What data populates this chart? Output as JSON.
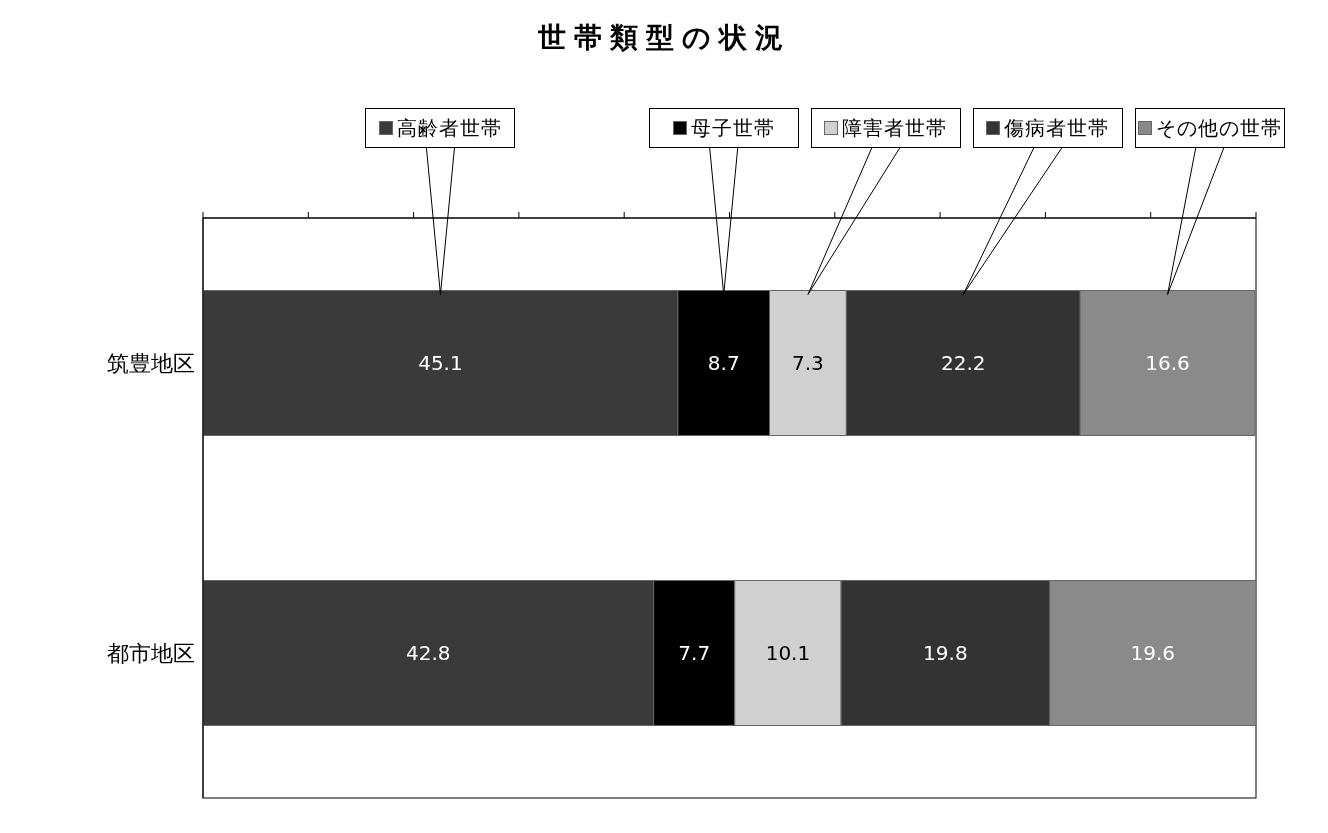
{
  "chart_data": {
    "type": "bar",
    "title": "世帯類型の状況",
    "orientation": "horizontal",
    "stacked": true,
    "categories": [
      "筑豊地区",
      "都市地区"
    ],
    "series": [
      {
        "name": "高齢者世帯",
        "color": "#3a3a3a",
        "values": [
          45.1,
          42.8
        ]
      },
      {
        "name": "母子世帯",
        "color": "#000000",
        "values": [
          8.7,
          7.7
        ]
      },
      {
        "name": "障害者世帯",
        "color": "#d0d0d0",
        "values": [
          7.3,
          10.1
        ]
      },
      {
        "name": "傷病者世帯",
        "color": "#333333",
        "values": [
          22.2,
          19.8
        ]
      },
      {
        "name": "その他の世帯",
        "color": "#8a8a8a",
        "values": [
          16.6,
          19.6
        ]
      }
    ],
    "xlim": [
      0,
      100
    ],
    "xticks": [
      {
        "value": 0,
        "label": null
      },
      {
        "value": 10,
        "label": null
      },
      {
        "value": 20,
        "label": null
      },
      {
        "value": 30,
        "label": null
      },
      {
        "value": 40,
        "label": null
      },
      {
        "value": 50,
        "label": null
      },
      {
        "value": 60,
        "label": null
      },
      {
        "value": 70,
        "label": null
      },
      {
        "value": 80,
        "label": null
      },
      {
        "value": 90,
        "label": null
      },
      {
        "value": 100,
        "label": null
      }
    ],
    "tick_labels": "y",
    "data_labels": true,
    "legend": "top",
    "grid": false
  }
}
